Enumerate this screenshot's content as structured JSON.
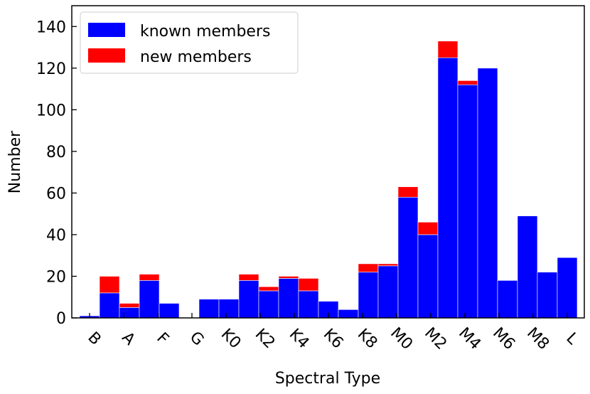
{
  "chart_data": {
    "type": "bar",
    "stacked": true,
    "title": "",
    "xlabel": "Spectral Type",
    "ylabel": "Number",
    "ylim": [
      0,
      150
    ],
    "yticks": [
      0,
      20,
      40,
      60,
      80,
      100,
      120,
      140
    ],
    "xtick_labels": [
      "B",
      "A",
      "F",
      "G",
      "K0",
      "K2",
      "K4",
      "K6",
      "K8",
      "M0",
      "M2",
      "M4",
      "M6",
      "M8",
      "L"
    ],
    "legend_position": "top-left",
    "series": [
      {
        "name": "known members",
        "color": "#0000ff",
        "values": [
          1,
          12,
          5,
          18,
          7,
          0,
          9,
          9,
          18,
          13,
          19,
          13,
          8,
          4,
          22,
          25,
          58,
          40,
          125,
          112,
          120,
          18,
          49,
          22,
          29
        ]
      },
      {
        "name": "new members",
        "color": "#ff0000",
        "values": [
          0,
          8,
          2,
          3,
          0,
          0,
          0,
          0,
          3,
          2,
          1,
          6,
          0,
          0,
          4,
          1,
          5,
          6,
          8,
          2,
          0,
          0,
          0,
          0,
          0
        ]
      }
    ]
  }
}
